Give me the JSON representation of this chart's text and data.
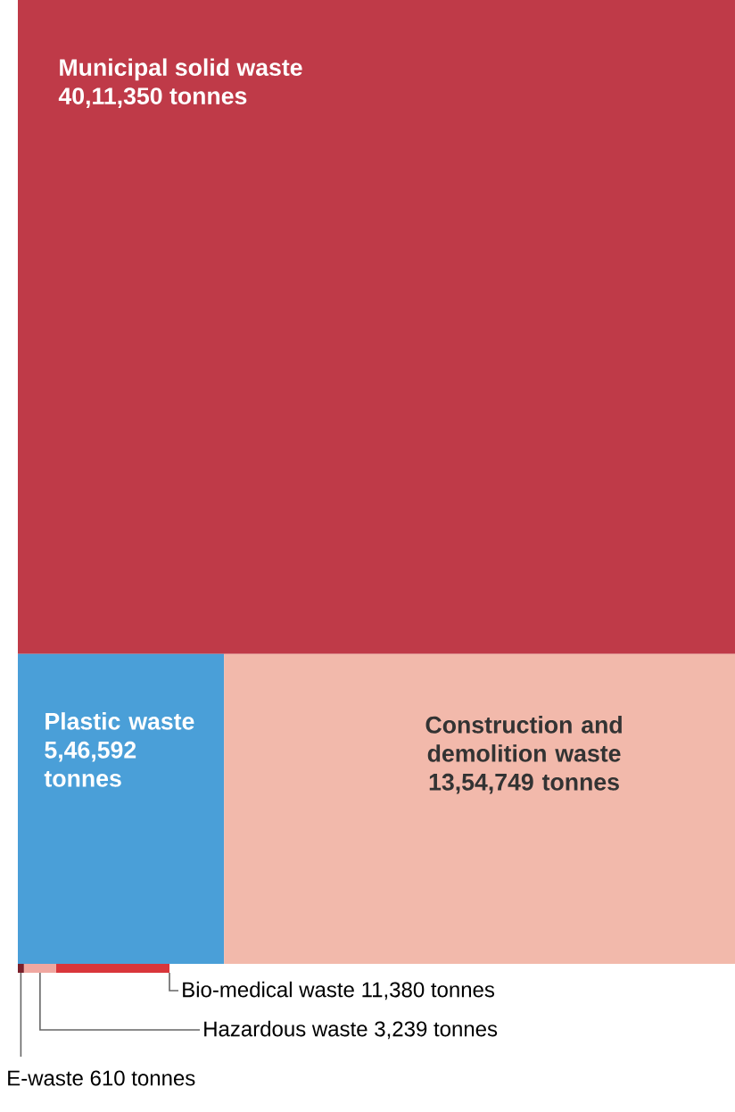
{
  "chart_data": {
    "type": "other",
    "categories": [
      "Municipal solid waste",
      "Plastic waste",
      "Construction and demolition waste",
      "Bio-medical waste",
      "Hazardous waste",
      "E-waste"
    ],
    "values": [
      4011350,
      546592,
      1354749,
      11380,
      3239,
      610
    ],
    "value_labels": [
      "40,11,350 tonnes",
      "5,46,592 tonnes",
      "13,54,749 tonnes",
      "11,380 tonnes",
      "3,239 tonnes",
      "610 tonnes"
    ],
    "colors": [
      "#bf3a48",
      "#4a9fd8",
      "#f2b9ab",
      "#d9363b",
      "#f0a7a0",
      "#7a1f2a"
    ]
  }
}
